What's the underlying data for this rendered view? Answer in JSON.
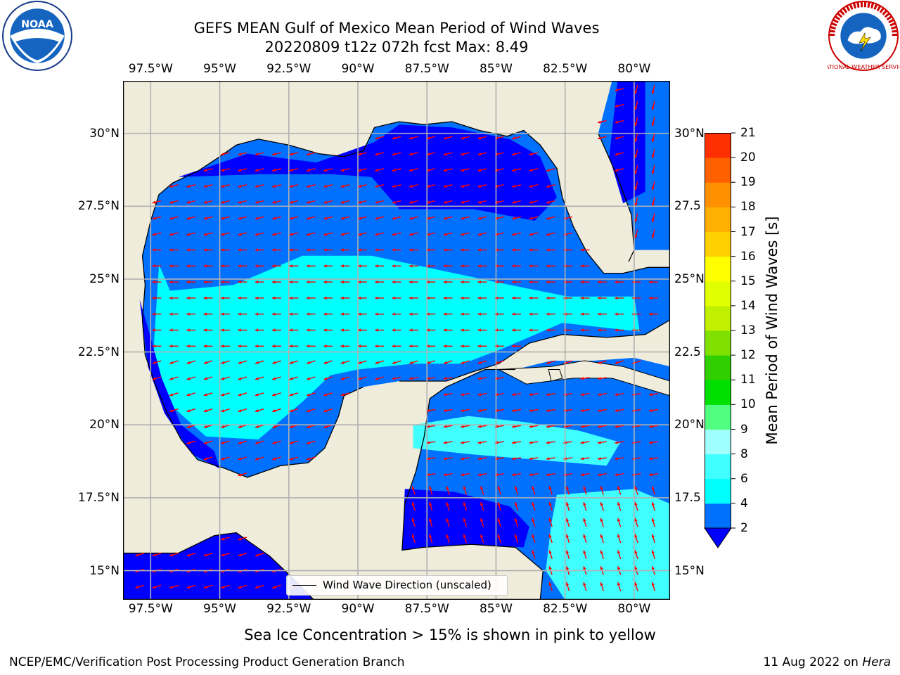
{
  "title": {
    "line1": "GEFS MEAN Gulf of Mexico Mean Period of Wind Waves",
    "line2": "20220809 t12z 072h fcst   Max: 8.49"
  },
  "logos": {
    "left": {
      "icon": "noaa-logo",
      "text": "NOAA"
    },
    "right": {
      "icon": "nws-logo",
      "text": "NATIONAL WEATHER SERVICE"
    }
  },
  "map": {
    "projection": "PlateCarree",
    "lon_range": [
      -98.5,
      -78.7
    ],
    "lat_range": [
      14.0,
      31.8
    ],
    "lon_ticks": [
      "97.5°W",
      "95°W",
      "92.5°W",
      "90°W",
      "87.5°W",
      "85°W",
      "82.5°W",
      "80°W"
    ],
    "lat_ticks_left": [
      "30°N",
      "27.5°N",
      "25°N",
      "22.5°N",
      "20°N",
      "17.5°N",
      "15°N"
    ],
    "lat_ticks_right": [
      "30°N",
      "27.5",
      "25°N",
      "22.5",
      "20°N",
      "17.5",
      "15°N"
    ],
    "land_color": "#efecdb",
    "grid_color": "#b0b0b0",
    "arrow_color": "#ff0000",
    "legend_label": "Wind Wave Direction (unscaled)"
  },
  "colorbar": {
    "title": "Mean Period of Wind Waves [s]",
    "tick_labels": [
      "2",
      "4",
      "6",
      "8",
      "9",
      "10",
      "11",
      "12",
      "13",
      "14",
      "15",
      "16",
      "17",
      "18",
      "19",
      "20",
      "21"
    ],
    "colors": [
      "#0070ff",
      "#00ffff",
      "#40ffff",
      "#a0ffff",
      "#50ff80",
      "#00e000",
      "#30d000",
      "#80e000",
      "#c0f000",
      "#e0ff00",
      "#ffff00",
      "#ffd000",
      "#ffb000",
      "#ff9000",
      "#ff6000",
      "#ff3000"
    ],
    "under_color": "#0000ff"
  },
  "bottom_note": "Sea Ice Concentration > 15% is shown in pink to yellow",
  "footer": {
    "left": "NCEP/EMC/Verification Post Processing Product Generation Branch",
    "right_date": "11 Aug 2022 on",
    "right_host": "Hera"
  }
}
